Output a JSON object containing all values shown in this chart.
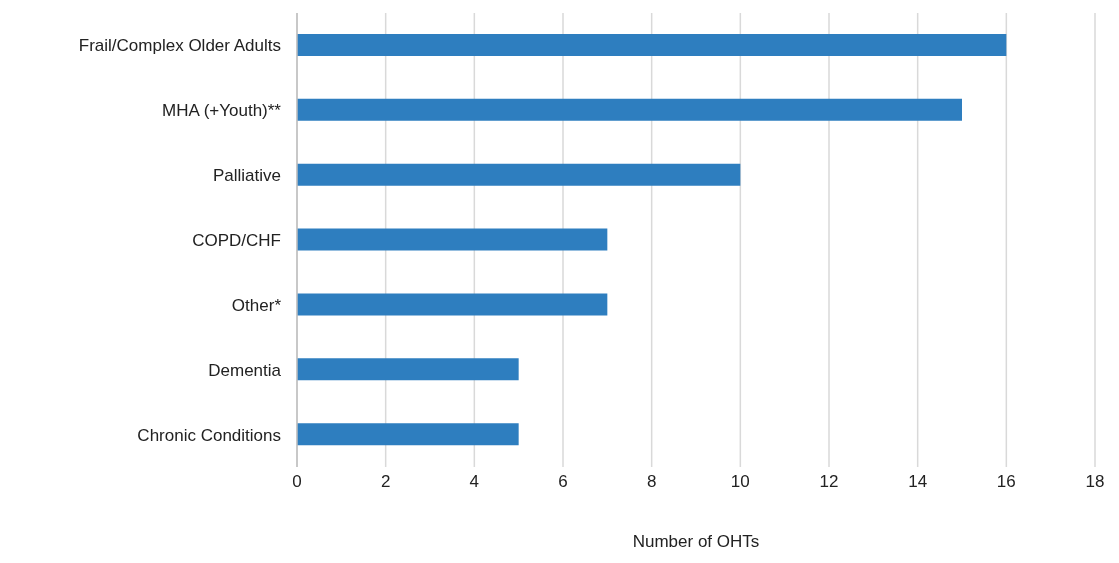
{
  "chart_data": {
    "type": "bar",
    "orientation": "horizontal",
    "xlabel": "Number of OHTs",
    "categories": [
      "Frail/Complex Older Adults",
      "MHA (+Youth)**",
      "Palliative",
      "COPD/CHF",
      "Other*",
      "Dementia",
      "Chronic Conditions"
    ],
    "values": [
      16,
      15,
      10,
      7,
      7,
      5,
      5
    ],
    "color": "#2e7ebf",
    "xlim": [
      0,
      18
    ],
    "xticks": [
      0,
      2,
      4,
      6,
      8,
      10,
      12,
      14,
      16,
      18
    ],
    "grid": "x"
  }
}
